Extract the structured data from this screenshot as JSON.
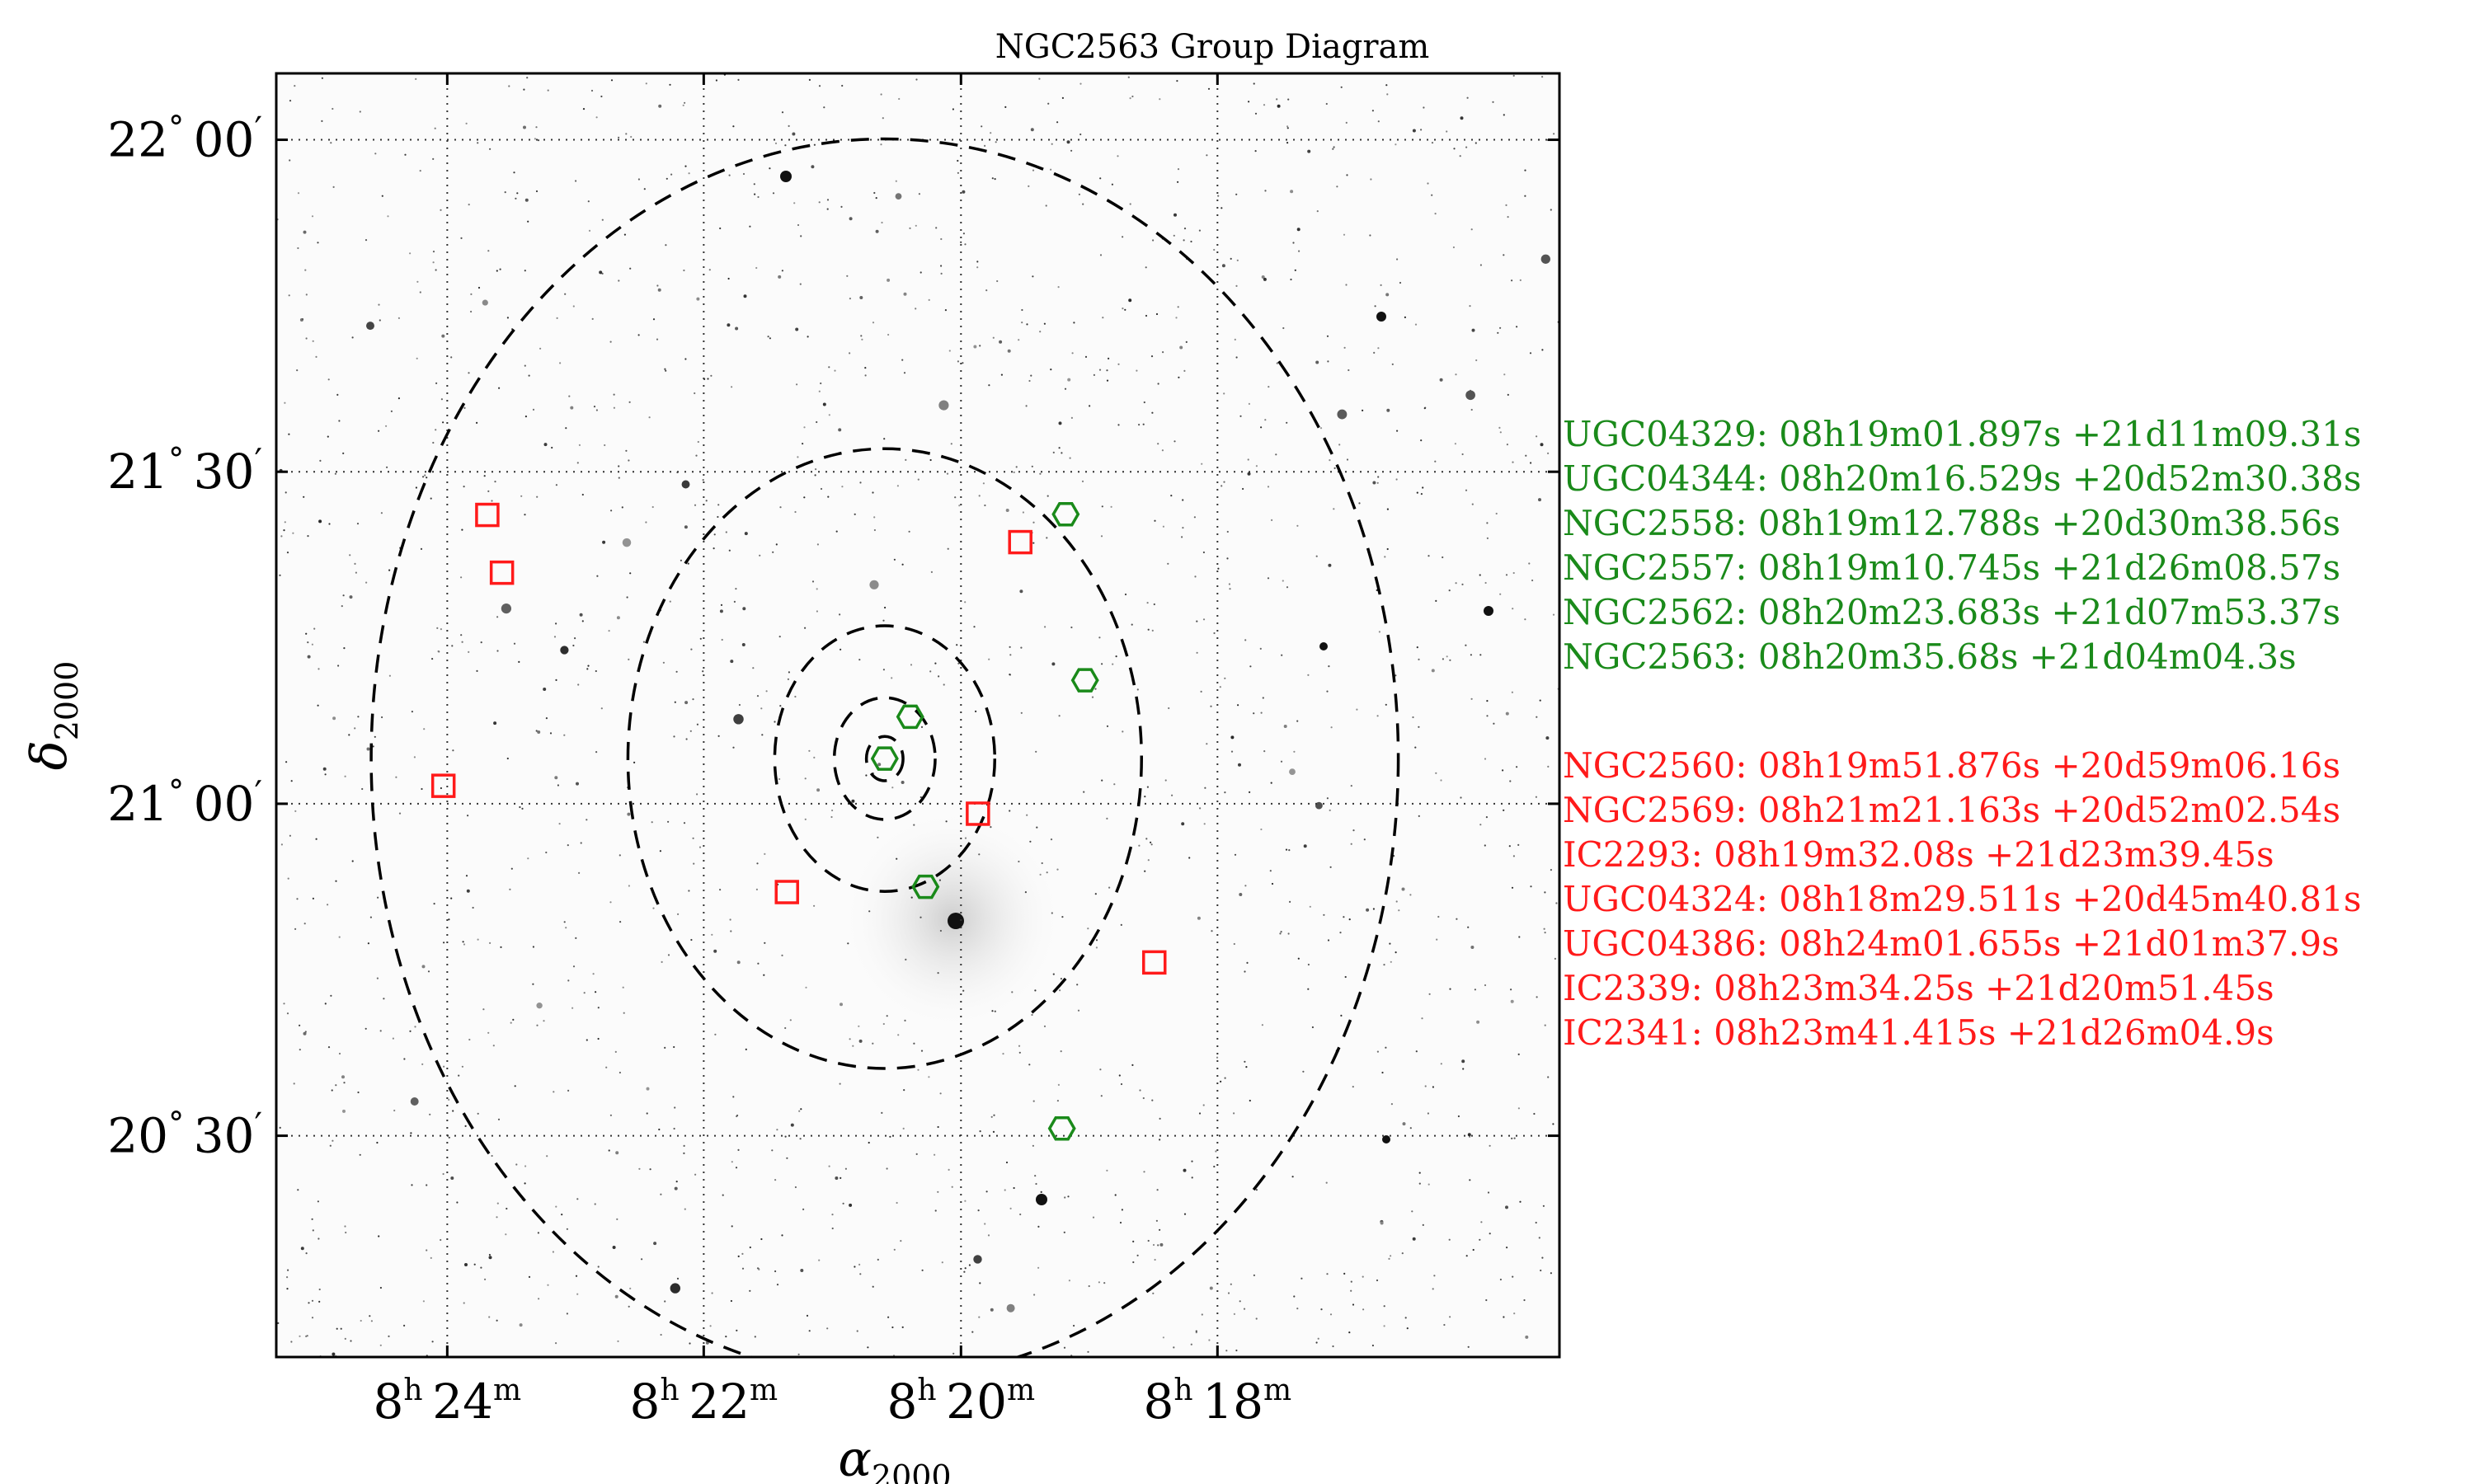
{
  "chart_data": {
    "type": "scatter",
    "title": "NGC2563 Group Diagram",
    "xlabel": "α₂₀₀₀",
    "ylabel": "δ₂₀₀₀",
    "x_unit": "hours of right ascension (J2000)",
    "y_unit": "degrees of declination (J2000)",
    "xlim": [
      8.4222,
      8.2556
    ],
    "ylim": [
      20.1667,
      22.1
    ],
    "x_reversed": true,
    "grid": true,
    "grid_style": "dotted",
    "background": "grayscale DSS sky image with scattered stars",
    "x_ticks": [
      {
        "value": 8.4,
        "label_h": "8",
        "label_m": "24"
      },
      {
        "value": 8.3667,
        "label_h": "8",
        "label_m": "22"
      },
      {
        "value": 8.3333,
        "label_h": "8",
        "label_m": "20"
      },
      {
        "value": 8.3,
        "label_h": "8",
        "label_m": "18"
      }
    ],
    "y_ticks": [
      {
        "value": 22.0,
        "label_d": "22",
        "label_m": "00"
      },
      {
        "value": 21.5,
        "label_d": "21",
        "label_m": "30"
      },
      {
        "value": 21.0,
        "label_d": "21",
        "label_m": "00"
      },
      {
        "value": 20.5,
        "label_d": "20",
        "label_m": "30"
      }
    ],
    "circles": {
      "center_ra": 8.3432,
      "center_dec": 21.068,
      "style": "dashed",
      "radii_deg": [
        0.0333,
        0.0917,
        0.2,
        0.4667,
        0.9333
      ]
    },
    "series": [
      {
        "color": "#1a8a1a",
        "marker": "hexagon",
        "points": [
          {
            "label": "UGC04329: 08h19m01.897s +21d11m09.31s",
            "ra": 8.3172,
            "dec": 21.186
          },
          {
            "label": "UGC04344: 08h20m16.529s +20d52m30.38s",
            "ra": 8.3379,
            "dec": 20.875
          },
          {
            "label": "NGC2558: 08h19m12.788s +20d30m38.56s",
            "ra": 8.3202,
            "dec": 20.511
          },
          {
            "label": "NGC2557: 08h19m10.745s +21d26m08.57s",
            "ra": 8.3197,
            "dec": 21.436
          },
          {
            "label": "NGC2562: 08h20m23.683s +21d07m53.37s",
            "ra": 8.3399,
            "dec": 21.131
          },
          {
            "label": "NGC2563: 08h20m35.68s +21d04m04.3s",
            "ra": 8.3432,
            "dec": 21.068
          }
        ]
      },
      {
        "color": "#ff1a1a",
        "marker": "square",
        "points": [
          {
            "label": "NGC2560: 08h19m51.876s +20d59m06.16s",
            "ra": 8.3311,
            "dec": 20.985
          },
          {
            "label": "NGC2569: 08h21m21.163s +20d52m02.54s",
            "ra": 8.3559,
            "dec": 20.867
          },
          {
            "label": "IC2293: 08h19m32.08s +21d23m39.45s",
            "ra": 8.3256,
            "dec": 21.394
          },
          {
            "label": "UGC04324: 08h18m29.511s +20d45m40.81s",
            "ra": 8.3082,
            "dec": 20.761
          },
          {
            "label": "UGC04386: 08h24m01.655s +21d01m37.9s",
            "ra": 8.4005,
            "dec": 21.027
          },
          {
            "label": "IC2339: 08h23m34.25s +21d20m51.45s",
            "ra": 8.3929,
            "dec": 21.348
          },
          {
            "label": "IC2341: 08h23m41.415s +21d26m04.9s",
            "ra": 8.3948,
            "dec": 21.435
          }
        ]
      }
    ]
  }
}
